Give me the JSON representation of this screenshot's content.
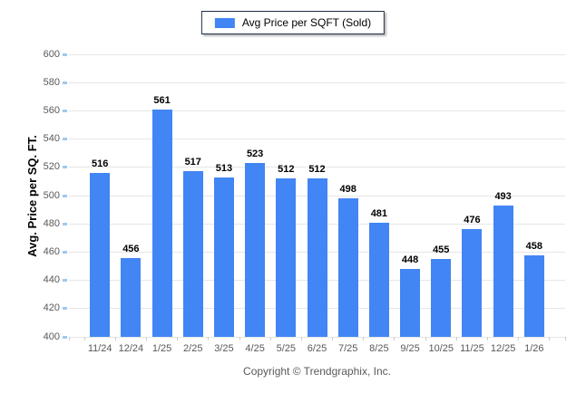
{
  "chart_data": {
    "type": "bar",
    "title": "",
    "legend_label": "Avg Price per SQFT (Sold)",
    "ylabel": "Avg. Price per SQ. FT.",
    "xlabel": "",
    "categories": [
      "11/24",
      "12/24",
      "1/25",
      "2/25",
      "3/25",
      "4/25",
      "5/25",
      "6/25",
      "7/25",
      "8/25",
      "9/25",
      "10/25",
      "11/25",
      "12/25",
      "1/26"
    ],
    "values": [
      516,
      456,
      561,
      517,
      513,
      523,
      512,
      512,
      498,
      481,
      448,
      455,
      476,
      493,
      458
    ],
    "ylim": [
      400,
      600
    ],
    "ytick_step": 20,
    "grid": true,
    "legend_position": "top-center"
  },
  "footer": {
    "copyright": "Copyright © Trendgraphix, Inc."
  },
  "colors": {
    "bar": "#4285F4",
    "grid": "#e6e6e6",
    "axis_text": "#595959",
    "value_label": "#000000",
    "legend_border": "#1f2f47",
    "y_tick": "#9fc9ed"
  }
}
